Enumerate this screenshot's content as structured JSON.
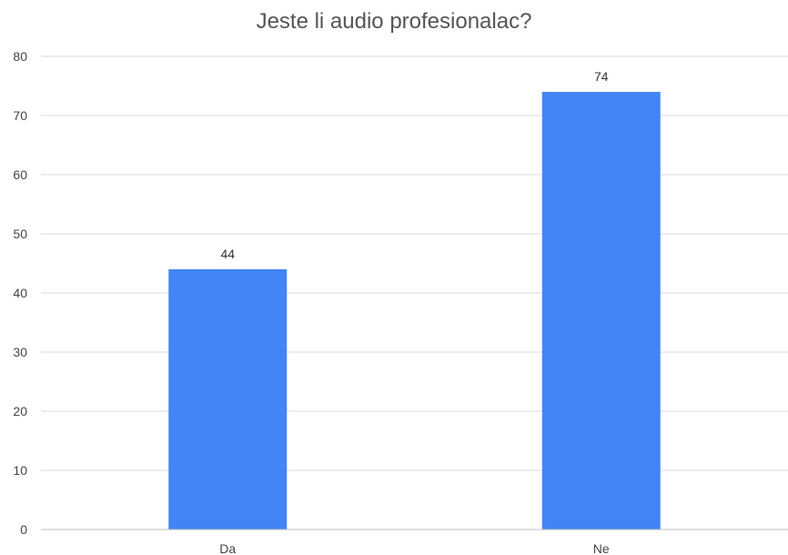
{
  "chart_data": {
    "type": "bar",
    "title": "Jeste li audio profesionalac?",
    "categories": [
      "Da",
      "Ne"
    ],
    "values": [
      44,
      74
    ],
    "data_labels": [
      "44",
      "74"
    ],
    "ylim": [
      0,
      80
    ],
    "y_ticks": [
      0,
      10,
      20,
      30,
      40,
      50,
      60,
      70,
      80
    ],
    "y_tick_labels": [
      "0",
      "10",
      "20",
      "30",
      "40",
      "50",
      "60",
      "70",
      "80"
    ],
    "xlabel": "",
    "ylabel": "",
    "grid": true,
    "legend": "none",
    "bar_color": "#4285f4",
    "gridline_color": "#d9d9d9",
    "axis_line_color": "#bdbdbd"
  }
}
